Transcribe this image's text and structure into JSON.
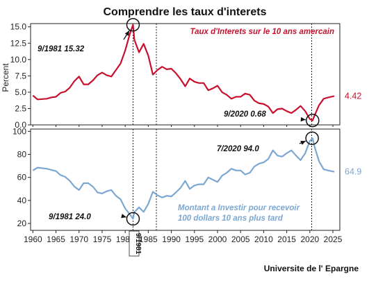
{
  "chart_data": {
    "type": "line",
    "title": "Comprendre les taux d'interets",
    "credit": "Universite de l' Epargne",
    "xlim": [
      1959.5,
      2026.5
    ],
    "x_ticks": [
      1960,
      1965,
      1970,
      1975,
      1980,
      1985,
      1990,
      1995,
      2000,
      2005,
      2010,
      2015,
      2020,
      2025
    ],
    "vertical_marker_label": "9/1981",
    "panels": [
      {
        "ylabel": "Percent",
        "ylim": [
          0,
          15.5
        ],
        "y_ticks": [
          0.0,
          2.5,
          5.0,
          7.5,
          10.0,
          12.5,
          15.0
        ],
        "y_tick_labels": [
          "0.0",
          "2.5",
          "5.0",
          "7.5",
          "10.0",
          "12.5",
          "15.0"
        ],
        "series": [
          {
            "name": "Taux d'Interets sur le 10 ans amercain",
            "color": "#c8102e",
            "last_value_label": "4.42",
            "x": [
              1960,
              1961,
              1962,
              1963,
              1964,
              1965,
              1966,
              1967,
              1968,
              1969,
              1970,
              1971,
              1972,
              1973,
              1974,
              1975,
              1976,
              1977,
              1978,
              1979,
              1980,
              1981,
              1981.7,
              1982,
              1983,
              1984,
              1985,
              1986,
              1987,
              1988,
              1989,
              1990,
              1991,
              1992,
              1993,
              1994,
              1995,
              1996,
              1997,
              1998,
              1999,
              2000,
              2001,
              2002,
              2003,
              2004,
              2005,
              2006,
              2007,
              2008,
              2009,
              2010,
              2011,
              2012,
              2013,
              2014,
              2015,
              2016,
              2017,
              2018,
              2019,
              2020,
              2020.6,
              2021,
              2022,
              2023,
              2024,
              2025.3
            ],
            "y": [
              4.5,
              3.9,
              3.95,
              4.0,
              4.2,
              4.3,
              4.9,
              5.1,
              5.7,
              6.7,
              7.4,
              6.2,
              6.2,
              6.8,
              7.6,
              8.0,
              7.6,
              7.4,
              8.4,
              9.4,
              11.4,
              13.9,
              15.32,
              13.0,
              11.1,
              12.4,
              10.6,
              7.7,
              8.4,
              8.9,
              8.5,
              8.6,
              7.9,
              7.0,
              5.9,
              7.1,
              6.6,
              6.4,
              6.4,
              5.3,
              5.6,
              6.0,
              5.0,
              4.6,
              4.0,
              4.3,
              4.3,
              4.8,
              4.6,
              3.7,
              3.3,
              3.2,
              2.8,
              1.8,
              2.4,
              2.5,
              2.1,
              1.8,
              2.3,
              2.9,
              2.1,
              0.9,
              0.68,
              1.4,
              3.0,
              4.0,
              4.2,
              4.42
            ]
          }
        ],
        "annotations": [
          {
            "text": "9/1981 15.32",
            "x": 1981.7,
            "y": 15.32
          },
          {
            "text": "9/2020 0.68",
            "x": 2020.6,
            "y": 0.68
          }
        ]
      },
      {
        "ylabel": "",
        "ylim": [
          14,
          102
        ],
        "y_ticks": [
          20,
          40,
          60,
          80,
          100
        ],
        "y_tick_labels": [
          "20",
          "40",
          "60",
          "80",
          "100"
        ],
        "series": [
          {
            "name": "Montant a Investir pour recevoir 100 dollars 10 ans plus tard",
            "color": "#7ba7d3",
            "last_value_label": "64.9",
            "x": [
              1960,
              1961,
              1962,
              1963,
              1964,
              1965,
              1966,
              1967,
              1968,
              1969,
              1970,
              1971,
              1972,
              1973,
              1974,
              1975,
              1976,
              1977,
              1978,
              1979,
              1980,
              1981,
              1981.7,
              1982,
              1983,
              1984,
              1985,
              1986,
              1987,
              1988,
              1989,
              1990,
              1991,
              1992,
              1993,
              1994,
              1995,
              1996,
              1997,
              1998,
              1999,
              2000,
              2001,
              2002,
              2003,
              2004,
              2005,
              2006,
              2007,
              2008,
              2009,
              2010,
              2011,
              2012,
              2013,
              2014,
              2015,
              2016,
              2017,
              2018,
              2019,
              2020,
              2020.6,
              2021,
              2022,
              2023,
              2024,
              2025.3
            ],
            "y": [
              66,
              68.5,
              68,
              67.5,
              66.5,
              65.5,
              62,
              60.5,
              57,
              52,
              49,
              55,
              55,
              52,
              47,
              46,
              48,
              49,
              44,
              41,
              33,
              28,
              24.0,
              30,
              34,
              30,
              37,
              47.5,
              44.5,
              42.5,
              44,
              43.5,
              47,
              51,
              57,
              50,
              53,
              54,
              54,
              60,
              58,
              56,
              61.5,
              64,
              67.5,
              66,
              66,
              62.5,
              64,
              69.5,
              72,
              73,
              76,
              83.5,
              79,
              78,
              81,
              83.5,
              79,
              75,
              81,
              91.5,
              94.0,
              87,
              74,
              67,
              66,
              64.9
            ]
          }
        ],
        "annotations": [
          {
            "text": "9/1981 24.0",
            "x": 1981.7,
            "y": 24.0
          },
          {
            "text": "7/2020 94.0",
            "x": 2020.5,
            "y": 94.0
          }
        ]
      }
    ]
  }
}
